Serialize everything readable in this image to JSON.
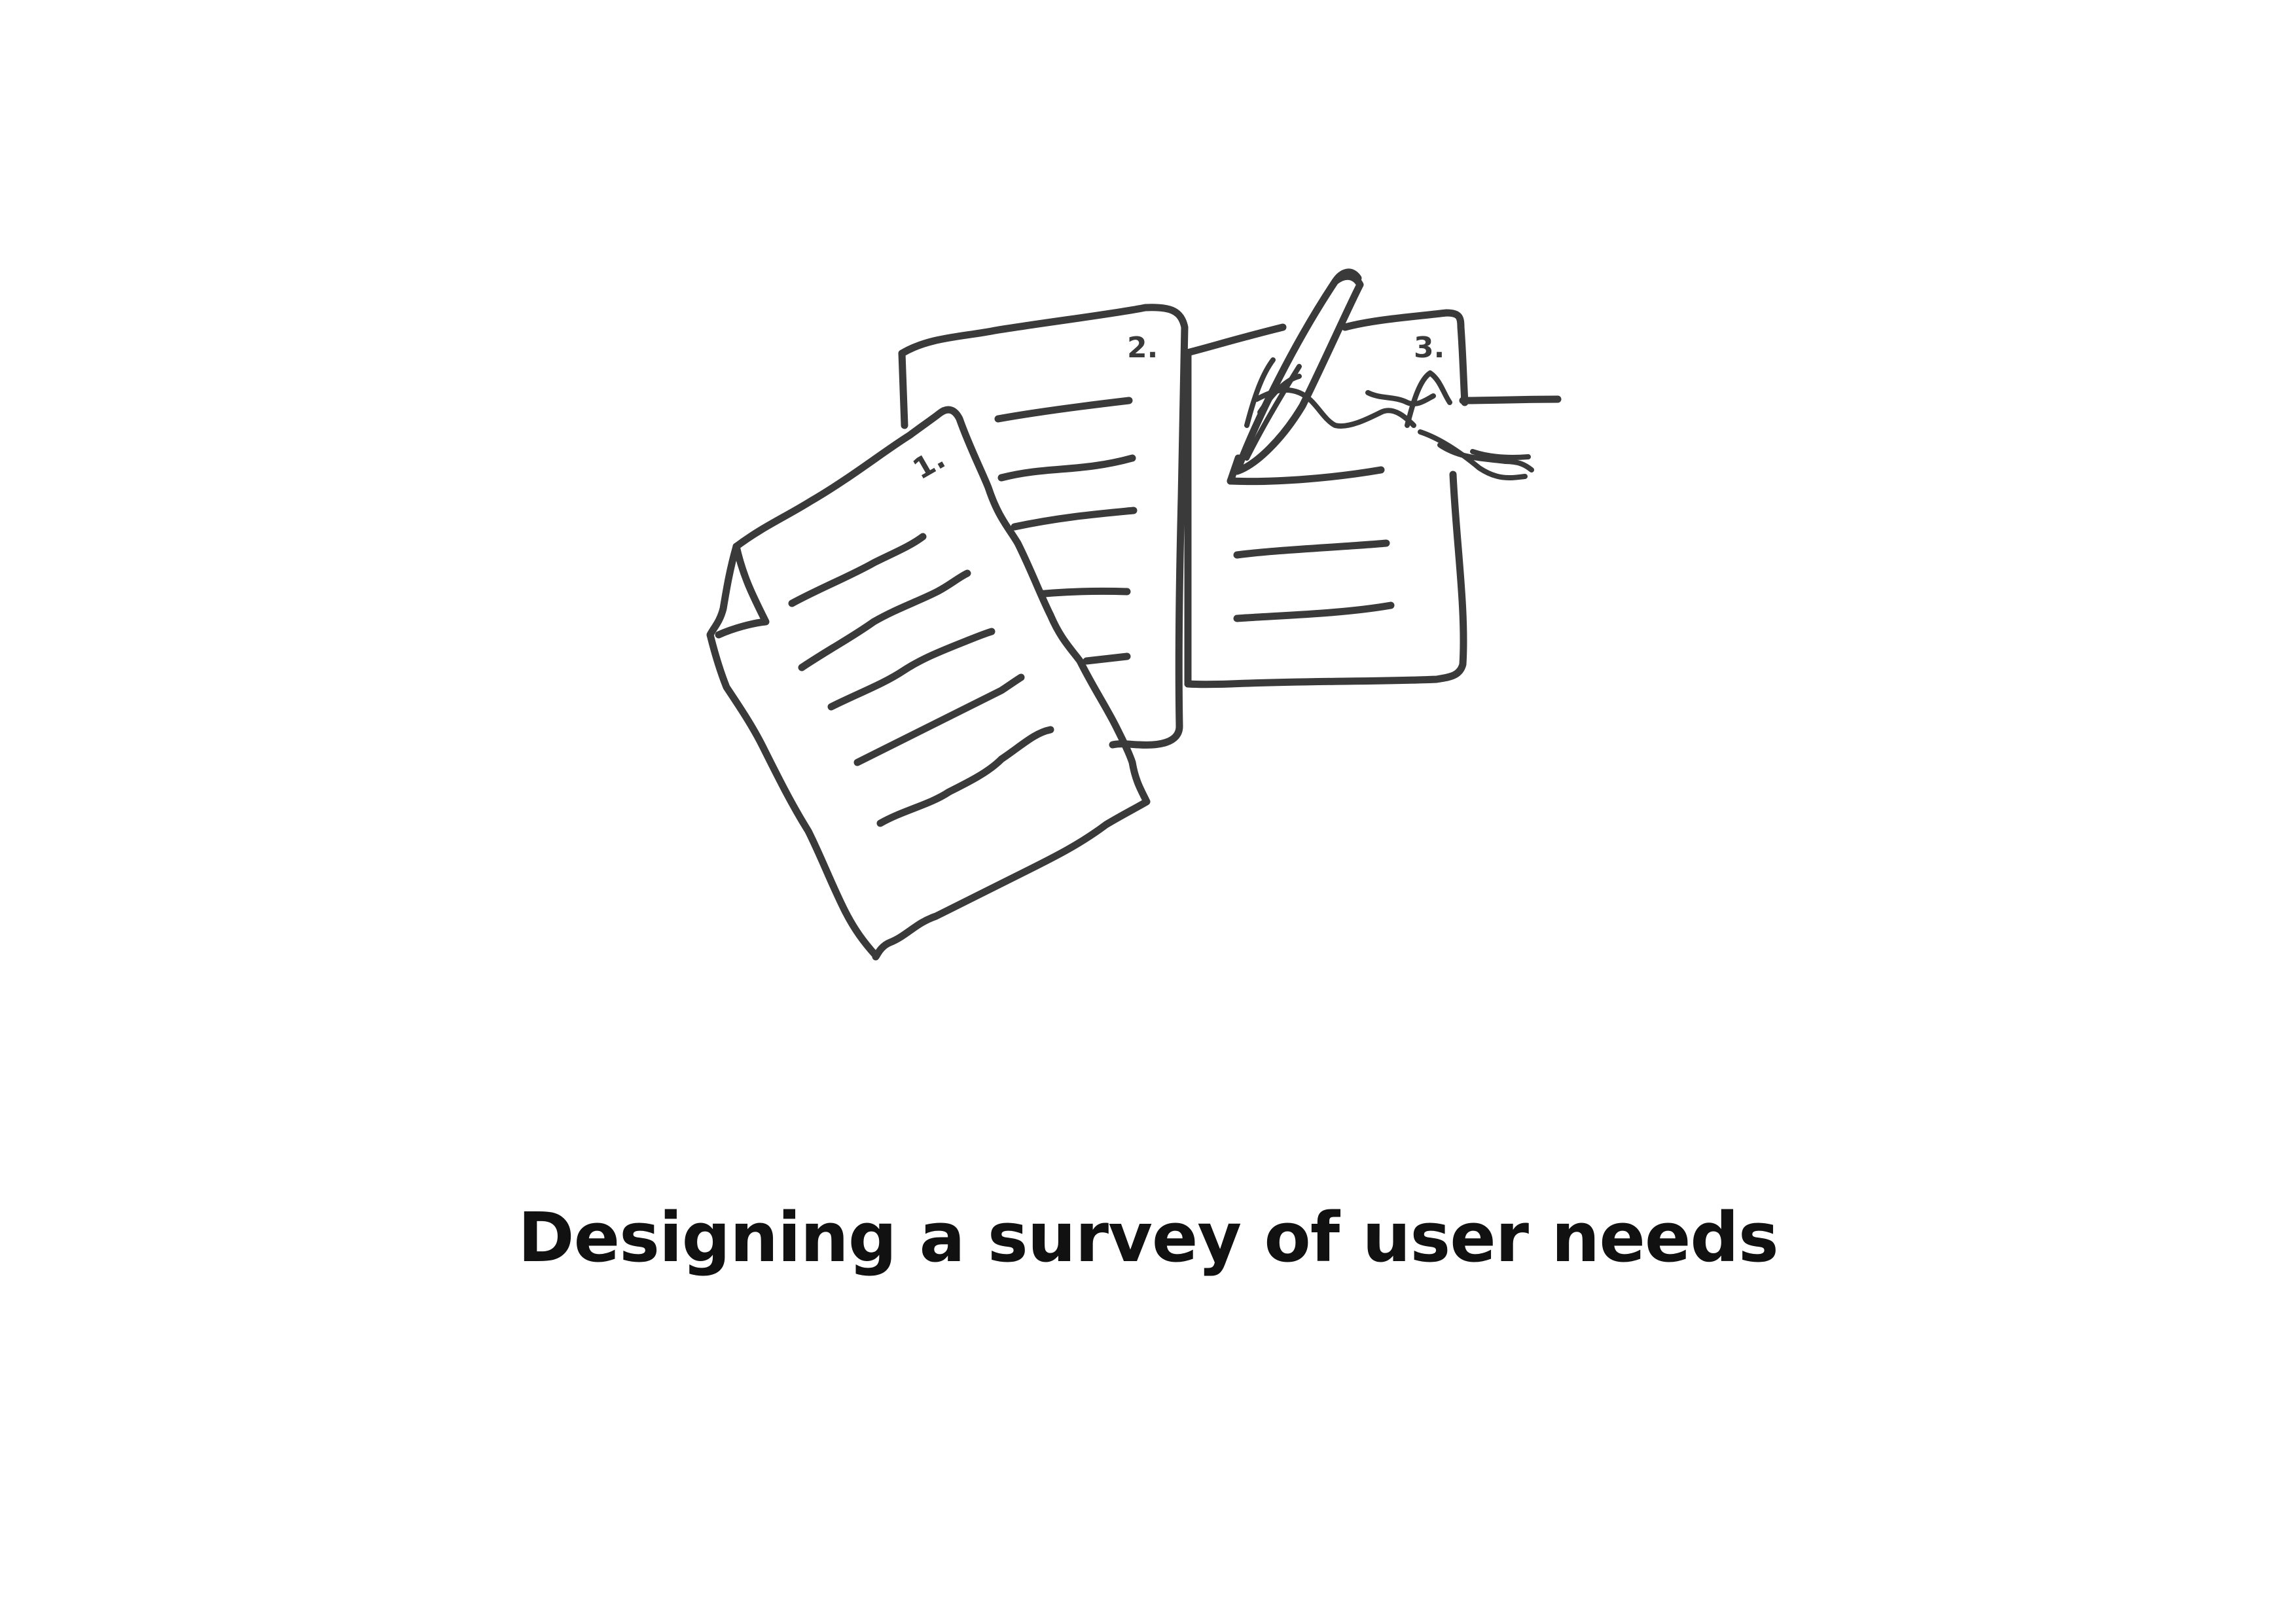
{
  "caption": {
    "text": "Designing a survey of user needs"
  },
  "illustration": {
    "icon": "survey-pages-sketch-icon",
    "pages": [
      {
        "number_label": "1."
      },
      {
        "number_label": "2."
      },
      {
        "number_label": "3."
      }
    ]
  },
  "colors": {
    "background": "#ffffff",
    "ink": "#3a3a3a",
    "caption_text": "#111111"
  }
}
